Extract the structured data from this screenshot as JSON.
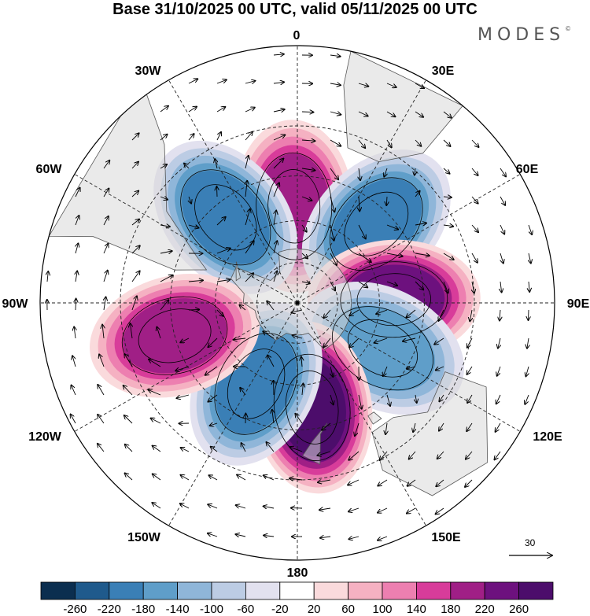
{
  "title": "Base 31/10/2025 00 UTC, valid 05/11/2025 00 UTC",
  "logo": "MODES",
  "logo_mark": "©",
  "map": {
    "projection": "south-polar-stereographic",
    "longitude_labels": [
      "0",
      "30E",
      "60E",
      "90E",
      "120E",
      "150E",
      "180",
      "150W",
      "120W",
      "90W",
      "60W",
      "30W"
    ],
    "reference_vector_label": "30"
  },
  "anomaly_centers": [
    {
      "name": "positive-south-atlantic",
      "lon": -2,
      "lat": -55,
      "value": 180
    },
    {
      "name": "negative-sw-atlantic",
      "lon": -40,
      "lat": -50,
      "value": -180
    },
    {
      "name": "negative-south-indian",
      "lon": 45,
      "lat": -50,
      "value": -180
    },
    {
      "name": "positive-south-indian-east",
      "lon": 88,
      "lat": -55,
      "value": 240
    },
    {
      "name": "negative-south-of-australia",
      "lon": 118,
      "lat": -55,
      "value": -160
    },
    {
      "name": "positive-near-new-zealand",
      "lon": 172,
      "lat": -52,
      "value": 260
    },
    {
      "name": "negative-south-pacific",
      "lon": -153,
      "lat": -57,
      "value": -180
    },
    {
      "name": "positive-south-pacific-east",
      "lon": -105,
      "lat": -45,
      "value": 180
    }
  ],
  "colorbar": {
    "ticks": [
      "-260",
      "-220",
      "-180",
      "-140",
      "-100",
      "-60",
      "-20",
      "20",
      "60",
      "100",
      "140",
      "180",
      "220",
      "260"
    ],
    "colors": [
      "#0b2e4f",
      "#1f5a8c",
      "#3a7fb6",
      "#5f9ec9",
      "#8fb6d9",
      "#bccce4",
      "#e2e1ef",
      "#ffffff",
      "#fadadc",
      "#f5b1c2",
      "#ed7fb0",
      "#d83c9a",
      "#a01f86",
      "#6d117e",
      "#4c0d6b"
    ]
  }
}
